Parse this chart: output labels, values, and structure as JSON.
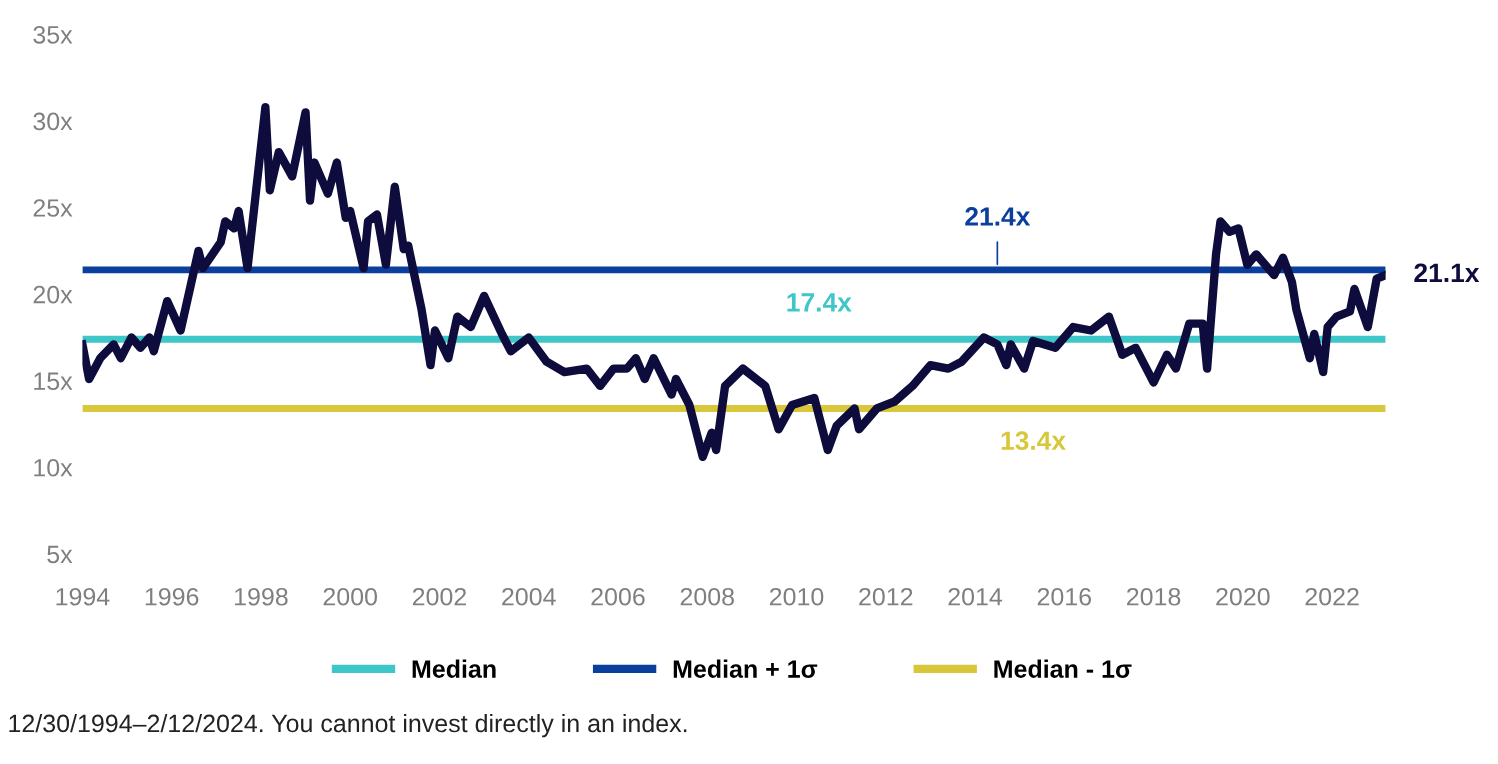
{
  "chart_data": {
    "type": "line",
    "x": [
      1994.0,
      1994.15,
      1994.4,
      1994.7,
      1994.86,
      1995.1,
      1995.3,
      1995.5,
      1995.6,
      1995.9,
      1996.2,
      1996.6,
      1996.7,
      1997.1,
      1997.2,
      1997.4,
      1997.5,
      1997.7,
      1998.1,
      1998.2,
      1998.4,
      1998.7,
      1999.0,
      1999.1,
      1999.2,
      1999.5,
      1999.7,
      1999.9,
      2000.0,
      2000.3,
      2000.4,
      2000.6,
      2000.8,
      2001.0,
      2001.2,
      2001.3,
      2001.6,
      2001.8,
      2001.9,
      2002.2,
      2002.4,
      2002.7,
      2003.0,
      2003.4,
      2003.6,
      2004.0,
      2004.4,
      2004.8,
      2005.3,
      2005.6,
      2005.9,
      2006.2,
      2006.4,
      2006.6,
      2006.8,
      2007.2,
      2007.3,
      2007.6,
      2007.9,
      2008.1,
      2008.2,
      2008.4,
      2008.8,
      2009.3,
      2009.6,
      2009.9,
      2010.4,
      2010.7,
      2010.9,
      2011.3,
      2011.4,
      2011.8,
      2012.2,
      2012.6,
      2013.0,
      2013.4,
      2013.7,
      2014.2,
      2014.5,
      2014.7,
      2014.8,
      2015.1,
      2015.3,
      2015.8,
      2016.2,
      2016.6,
      2017.0,
      2017.3,
      2017.6,
      2017.8,
      2018.0,
      2018.3,
      2018.5,
      2018.8,
      2019.1,
      2019.2,
      2019.4,
      2019.5,
      2019.7,
      2019.9,
      2020.1,
      2020.3,
      2020.7,
      2020.9,
      2021.1,
      2021.2,
      2021.5,
      2021.6,
      2021.8,
      2021.9,
      2022.1,
      2022.4,
      2022.5,
      2022.8,
      2023.0,
      2023.2
    ],
    "series": [
      {
        "color": "#0d0c3c",
        "values": [
          17.1,
          15.1,
          16.3,
          17.1,
          16.3,
          17.5,
          16.9,
          17.5,
          16.7,
          19.6,
          17.9,
          22.5,
          21.5,
          23.0,
          24.2,
          23.8,
          24.8,
          21.5,
          30.8,
          26.0,
          28.2,
          26.8,
          30.5,
          25.4,
          27.6,
          25.8,
          27.6,
          24.4,
          24.8,
          21.5,
          24.2,
          24.6,
          21.7,
          26.2,
          22.6,
          22.8,
          19.1,
          15.9,
          17.9,
          16.3,
          18.7,
          18.1,
          19.9,
          17.7,
          16.7,
          17.5,
          16.1,
          15.5,
          15.7,
          14.7,
          15.7,
          15.7,
          16.3,
          15.1,
          16.3,
          14.2,
          15.1,
          13.6,
          10.6,
          12.0,
          11.0,
          14.7,
          15.7,
          14.7,
          12.2,
          13.6,
          14.0,
          11.0,
          12.4,
          13.4,
          12.2,
          13.4,
          13.8,
          14.7,
          15.9,
          15.7,
          16.1,
          17.5,
          17.1,
          15.9,
          17.1,
          15.7,
          17.3,
          16.9,
          18.1,
          17.9,
          18.7,
          16.5,
          16.9,
          15.9,
          14.9,
          16.5,
          15.7,
          18.3,
          18.3,
          15.7,
          22.3,
          24.2,
          23.6,
          23.8,
          21.7,
          22.3,
          21.1,
          22.1,
          20.7,
          19.1,
          16.3,
          17.7,
          15.5,
          18.1,
          18.7,
          19.0,
          20.3,
          18.1,
          20.9,
          21.1
        ]
      }
    ],
    "ref_lines": [
      {
        "axis": "y",
        "value": 17.4,
        "label": "Median",
        "color": "#3ec6c9"
      },
      {
        "axis": "y",
        "value": 21.4,
        "label": "Median + 1σ",
        "color": "#0a3f9e"
      },
      {
        "axis": "y",
        "value": 13.4,
        "label": "Median - 1σ",
        "color": "#d8c73a"
      }
    ],
    "annotations": [
      {
        "text": "21.4x",
        "x": 2014.5,
        "y": 21.4
      },
      {
        "text": "17.4x",
        "x": 2010.5,
        "y": 17.4
      },
      {
        "text": "13.4x",
        "x": 2015.3,
        "y": 13.4
      },
      {
        "text": "21.1x",
        "x": 2023.2,
        "y": 21.1
      },
      "12/30/1994–2/12/2024. You cannot invest directly in an index."
    ],
    "xticks": [
      1994,
      1996,
      1998,
      2000,
      2002,
      2004,
      2006,
      2008,
      2010,
      2012,
      2014,
      2016,
      2018,
      2020,
      2022
    ],
    "xlim": [
      1994,
      2023.2
    ],
    "ylim": [
      5,
      35
    ],
    "yticks": [
      {
        "value": 5,
        "label": "5x"
      },
      {
        "value": 10,
        "label": "10x"
      },
      {
        "value": 15,
        "label": "15x"
      },
      {
        "value": 20,
        "label": "20x"
      },
      {
        "value": 25,
        "label": "25x"
      },
      {
        "value": 30,
        "label": "30x"
      },
      {
        "value": 35,
        "label": "35x"
      }
    ],
    "grid": false,
    "legend": "bottom",
    "marker": "none",
    "line_style": "solid"
  }
}
